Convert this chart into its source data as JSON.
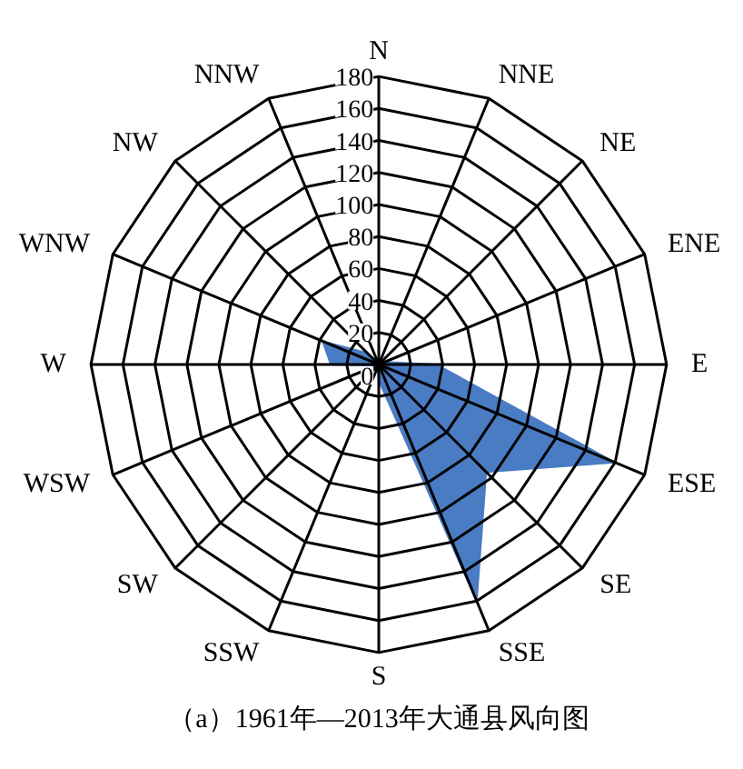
{
  "chart_data": {
    "type": "radar",
    "title": "（a）1961年—2013年大通县风向图",
    "categories": [
      "N",
      "NNE",
      "NE",
      "ENE",
      "E",
      "ESE",
      "SE",
      "SSE",
      "S",
      "SSW",
      "SW",
      "WSW",
      "W",
      "WNW",
      "NW",
      "NNW"
    ],
    "series": [
      {
        "color": "#4a7cc4",
        "values": [
          2,
          2,
          2,
          4,
          36,
          160,
          95,
          160,
          10,
          2,
          2,
          2,
          30,
          38,
          10,
          2
        ]
      }
    ],
    "ylim": [
      0,
      180
    ],
    "yticks": [
      0,
      20,
      40,
      60,
      80,
      100,
      120,
      140,
      160,
      180
    ]
  }
}
